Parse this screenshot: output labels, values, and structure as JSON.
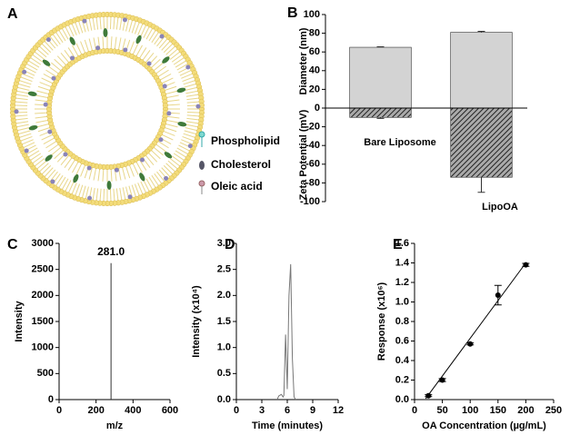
{
  "diagram": {
    "panel_label": "A",
    "legend": [
      "Phospholipid",
      "Cholesterol",
      "Oleic acid"
    ]
  },
  "chart_data": [
    {
      "type": "bar",
      "panel_label": "B",
      "categories": [
        "Bare Liposome",
        "LipoOA"
      ],
      "ylabel_top": "Diameter (nm)",
      "ylabel_bottom": "Zeta Potential (mV)",
      "series": [
        {
          "color": "#d3d3d3",
          "values": [
            65,
            81
          ],
          "errors": [
            0.5,
            1
          ]
        },
        {
          "color": "#444444",
          "pattern": "hatch",
          "values": [
            -10,
            -74
          ],
          "errors": [
            1,
            16
          ]
        }
      ],
      "ylim": [
        -100,
        100
      ],
      "yticks": [
        -100,
        -80,
        -60,
        -40,
        -20,
        0,
        20,
        40,
        60,
        80,
        100
      ]
    },
    {
      "type": "stem",
      "panel_label": "C",
      "xlabel": "m/z",
      "ylabel": "Intensity",
      "x": [
        200,
        281
      ],
      "values": [
        10,
        2620
      ],
      "color": "#333333",
      "annotations": [
        {
          "x": 281,
          "y": 2620,
          "text": "281.0"
        }
      ],
      "xlim": [
        0,
        600
      ],
      "xticks": [
        0,
        200,
        400,
        600
      ],
      "ylim": [
        0,
        3000
      ],
      "yticks": [
        0,
        500,
        1000,
        1500,
        2000,
        2500,
        3000
      ]
    },
    {
      "type": "line",
      "panel_label": "D",
      "xlabel": "Time (minutes)",
      "ylabel": "Intensity (x10⁴)",
      "x": [
        4.8,
        5.0,
        5.3,
        5.5,
        5.6,
        5.8,
        6.0,
        6.2,
        6.4,
        6.6,
        6.8,
        7.0
      ],
      "values": [
        0,
        0.07,
        0.1,
        0.05,
        0.08,
        1.25,
        0.2,
        2.0,
        2.6,
        0.8,
        0.05,
        0
      ],
      "color": "#777777",
      "xlim": [
        0,
        12
      ],
      "xticks": [
        0,
        3,
        6,
        9,
        12
      ],
      "ylim": [
        0,
        3
      ],
      "yticks": [
        {
          "value": 0,
          "label": "0.0"
        },
        0.5,
        {
          "value": 1,
          "label": "1.0"
        },
        1.5,
        {
          "value": 2,
          "label": "2.0"
        },
        2.5,
        {
          "value": 3,
          "label": "3.0"
        }
      ]
    },
    {
      "type": "scatter",
      "panel_label": "E",
      "xlabel": "OA Concentration (µg/mL)",
      "ylabel": "Response (x10⁶)",
      "x": [
        25,
        50,
        100,
        150,
        200
      ],
      "values": [
        0.04,
        0.2,
        0.57,
        1.07,
        1.38
      ],
      "errors": [
        0.01,
        0.015,
        0.01,
        0.1,
        0.015
      ],
      "color": "#000000",
      "fit": {
        "x": [
          20,
          200
        ],
        "values": [
          0.01,
          1.4
        ]
      },
      "xlim": [
        0,
        250
      ],
      "xticks": [
        0,
        50,
        100,
        150,
        200,
        250
      ],
      "ylim": [
        0,
        1.6
      ],
      "yticks": [
        {
          "value": 0,
          "label": "0.0"
        },
        0.2,
        0.4,
        0.6,
        0.8,
        {
          "value": 1,
          "label": "1.0"
        },
        1.2,
        1.4,
        1.6
      ]
    }
  ]
}
